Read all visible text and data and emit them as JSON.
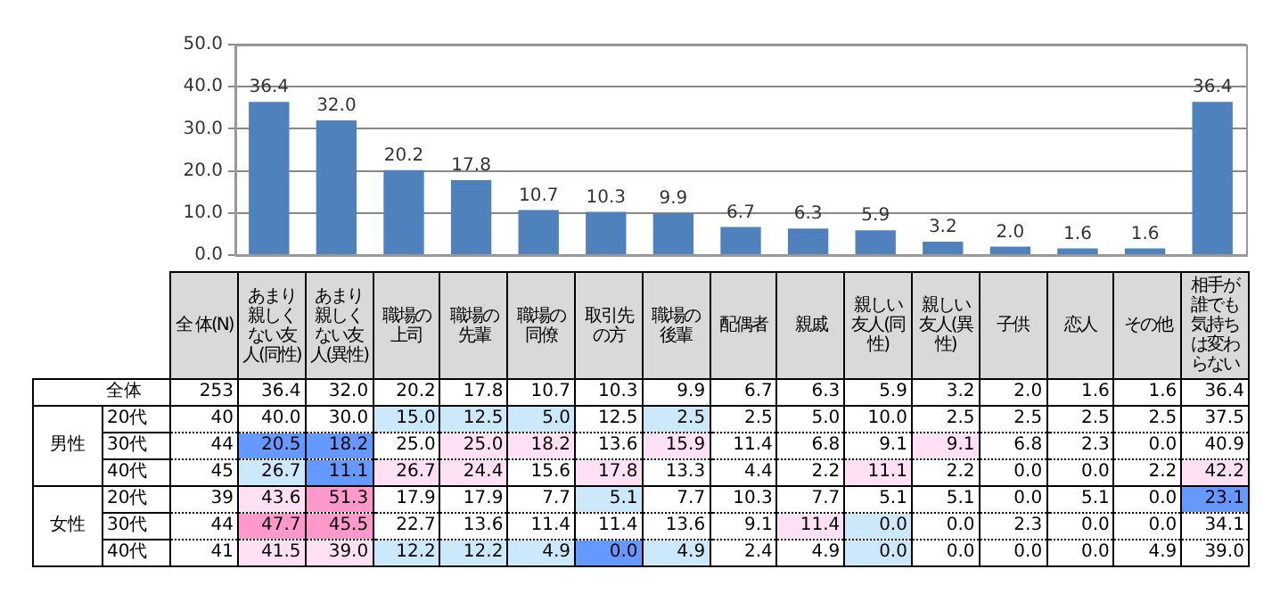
{
  "chart_data": [
    {
      "type": "bar",
      "categories": [
        null,
        null,
        null,
        null,
        null,
        null,
        null,
        null,
        null,
        null,
        null,
        null,
        null,
        null,
        null
      ],
      "values": [
        36.4,
        32.0,
        20.2,
        17.8,
        10.7,
        10.3,
        9.9,
        6.7,
        6.3,
        5.9,
        3.2,
        2.0,
        1.6,
        1.6,
        36.4
      ],
      "value_labels": [
        "36.4",
        "32.0",
        "20.2",
        "17.8",
        "10.7",
        "10.3",
        "9.9",
        "6.7",
        "6.3",
        "5.9",
        "3.2",
        "2.0",
        "1.6",
        "1.6",
        "36.4"
      ],
      "color": "#4f81bd",
      "ylim": [
        0,
        50
      ],
      "yticks": [
        {
          "value": 0,
          "label": "0.0"
        },
        {
          "value": 10,
          "label": "10.0"
        },
        {
          "value": 20,
          "label": "20.0"
        },
        {
          "value": 30,
          "label": "30.0"
        },
        {
          "value": 40,
          "label": "40.0"
        },
        {
          "value": 50,
          "label": "50.0"
        }
      ],
      "grid": "y",
      "tick_labels": "y"
    },
    {
      "type": "heatmap",
      "categories": [
        "全 体(N)",
        "あまり親しくない友人(同性)",
        "あまり親しくない友人(異性)",
        "職場の上司",
        "職場の先輩",
        "職場の同僚",
        "取引先の方",
        "職場の後輩",
        "配偶者",
        "親戚",
        "親しい友人(同性)",
        "親しい友人(異性)",
        "子供",
        "恋人",
        "その他",
        "相手が誰でも気持ちは変わらない"
      ],
      "y_categories": [
        "全体",
        "20代",
        "30代",
        "40代",
        "20代",
        "30代",
        "40代"
      ],
      "annotations": [
        "男性",
        "女性"
      ],
      "cells": [
        [
          253,
          36.4,
          32.0,
          20.2,
          17.8,
          10.7,
          10.3,
          9.9,
          6.7,
          6.3,
          5.9,
          3.2,
          2.0,
          1.6,
          1.6,
          36.4
        ],
        [
          40,
          40.0,
          30.0,
          15.0,
          12.5,
          5.0,
          12.5,
          2.5,
          2.5,
          5.0,
          10.0,
          2.5,
          2.5,
          2.5,
          2.5,
          37.5
        ],
        [
          44,
          20.5,
          18.2,
          25.0,
          25.0,
          18.2,
          13.6,
          15.9,
          11.4,
          6.8,
          9.1,
          9.1,
          6.8,
          2.3,
          0.0,
          40.9
        ],
        [
          45,
          26.7,
          11.1,
          26.7,
          24.4,
          15.6,
          17.8,
          13.3,
          4.4,
          2.2,
          11.1,
          2.2,
          0.0,
          0.0,
          2.2,
          42.2
        ],
        [
          39,
          43.6,
          51.3,
          17.9,
          17.9,
          7.7,
          5.1,
          7.7,
          10.3,
          7.7,
          5.1,
          5.1,
          0.0,
          5.1,
          0.0,
          23.1
        ],
        [
          44,
          47.7,
          45.5,
          22.7,
          13.6,
          11.4,
          11.4,
          13.6,
          9.1,
          11.4,
          0.0,
          0.0,
          2.3,
          0.0,
          0.0,
          34.1
        ],
        [
          41,
          41.5,
          39.0,
          12.2,
          12.2,
          4.9,
          0.0,
          4.9,
          2.4,
          4.9,
          0.0,
          0.0,
          0.0,
          0.0,
          4.9,
          39.0
        ]
      ],
      "cell_labels": [
        [
          "253",
          "36.4",
          "32.0",
          "20.2",
          "17.8",
          "10.7",
          "10.3",
          "9.9",
          "6.7",
          "6.3",
          "5.9",
          "3.2",
          "2.0",
          "1.6",
          "1.6",
          "36.4"
        ],
        [
          "40",
          "40.0",
          "30.0",
          "15.0",
          "12.5",
          "5.0",
          "12.5",
          "2.5",
          "2.5",
          "5.0",
          "10.0",
          "2.5",
          "2.5",
          "2.5",
          "2.5",
          "37.5"
        ],
        [
          "44",
          "20.5",
          "18.2",
          "25.0",
          "25.0",
          "18.2",
          "13.6",
          "15.9",
          "11.4",
          "6.8",
          "9.1",
          "9.1",
          "6.8",
          "2.3",
          "0.0",
          "40.9"
        ],
        [
          "45",
          "26.7",
          "11.1",
          "26.7",
          "24.4",
          "15.6",
          "17.8",
          "13.3",
          "4.4",
          "2.2",
          "11.1",
          "2.2",
          "0.0",
          "0.0",
          "2.2",
          "42.2"
        ],
        [
          "39",
          "43.6",
          "51.3",
          "17.9",
          "17.9",
          "7.7",
          "5.1",
          "7.7",
          "10.3",
          "7.7",
          "5.1",
          "5.1",
          "0.0",
          "5.1",
          "0.0",
          "23.1"
        ],
        [
          "44",
          "47.7",
          "45.5",
          "22.7",
          "13.6",
          "11.4",
          "11.4",
          "13.6",
          "9.1",
          "11.4",
          "0.0",
          "0.0",
          "2.3",
          "0.0",
          "0.0",
          "34.1"
        ],
        [
          "41",
          "41.5",
          "39.0",
          "12.2",
          "12.2",
          "4.9",
          "0.0",
          "4.9",
          "2.4",
          "4.9",
          "0.0",
          "0.0",
          "0.0",
          "0.0",
          "4.9",
          "39.0"
        ]
      ]
    }
  ]
}
